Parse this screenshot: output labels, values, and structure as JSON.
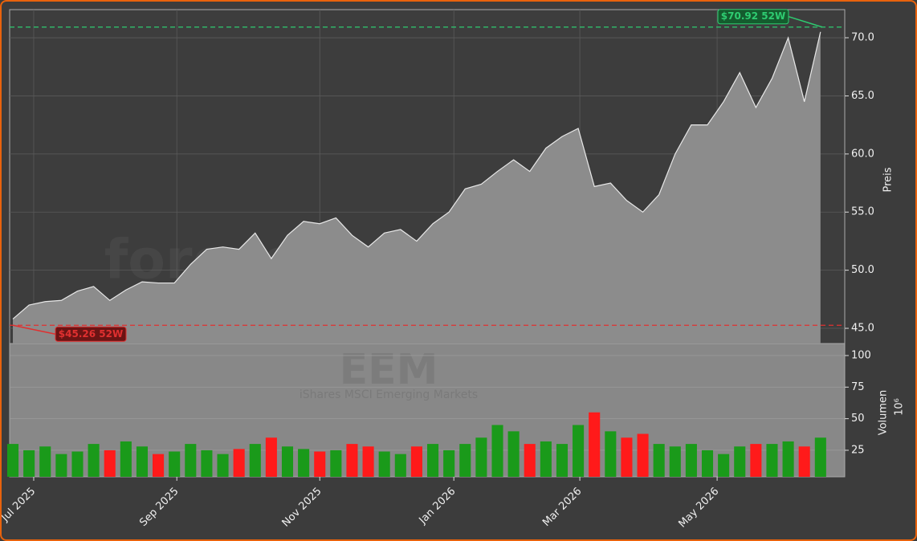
{
  "chart_data": [
    {
      "type": "area",
      "watermark": "forexsignale.trade",
      "ylabel": "Preis",
      "x": [
        0,
        1,
        2,
        3,
        4,
        5,
        6,
        7,
        8,
        9,
        10,
        11,
        12,
        13,
        14,
        15,
        16,
        17,
        18,
        19,
        20,
        21,
        22,
        23,
        24,
        25,
        26,
        27,
        28,
        29,
        30,
        31,
        32,
        33,
        34,
        35,
        36,
        37,
        38,
        39,
        40,
        41,
        42,
        43,
        44,
        45,
        46,
        47,
        48,
        49,
        50
      ],
      "series": [
        {
          "name": "EEM",
          "color": "#8c8c8c",
          "values": [
            45.8,
            47.0,
            47.3,
            47.4,
            48.2,
            48.6,
            47.4,
            48.3,
            49.0,
            48.9,
            48.9,
            50.5,
            51.8,
            52.0,
            51.8,
            53.2,
            51.0,
            53.0,
            54.2,
            54.0,
            54.5,
            53.0,
            52.0,
            53.2,
            53.5,
            52.5,
            54.0,
            55.0,
            57.0,
            57.4,
            58.5,
            59.5,
            58.5,
            60.5,
            61.5,
            62.2,
            57.2,
            57.5,
            56.0,
            55.0,
            56.5,
            60.0,
            62.5,
            62.5,
            64.5,
            67.0,
            64.0,
            66.5,
            70.0,
            64.5,
            70.5
          ]
        }
      ],
      "xlim": [
        -0.2,
        51.5
      ],
      "ylim": [
        43.69,
        72.42
      ],
      "yticks": [
        {
          "value": 45,
          "label": "45.0"
        },
        {
          "value": 50,
          "label": "50.0"
        },
        {
          "value": 55,
          "label": "55.0"
        },
        {
          "value": 60,
          "label": "60.0"
        },
        {
          "value": 65,
          "label": "65.0"
        },
        {
          "value": 70,
          "label": "70.0"
        }
      ],
      "grid": true,
      "hlines": [
        {
          "value": 70.92,
          "label": "$70.92 52W",
          "color": "#2ecc71"
        },
        {
          "value": 45.26,
          "label": "$45.26 52W",
          "color": "#e03030"
        }
      ]
    },
    {
      "type": "bar",
      "title": "EEM",
      "subtitle": "iShares MSCI Emerging Markets",
      "ylabel": "Volumen",
      "offset_label": "10⁶",
      "x": [
        0,
        1,
        2,
        3,
        4,
        5,
        6,
        7,
        8,
        9,
        10,
        11,
        12,
        13,
        14,
        15,
        16,
        17,
        18,
        19,
        20,
        21,
        22,
        23,
        24,
        25,
        26,
        27,
        28,
        29,
        30,
        31,
        32,
        33,
        34,
        35,
        36,
        37,
        38,
        39,
        40,
        41,
        42,
        43,
        44,
        45,
        46,
        47,
        48,
        49,
        50
      ],
      "up_color": "#1a9a1a",
      "down_color": "#ff1a1a",
      "values": [
        30,
        25,
        28,
        22,
        24,
        30,
        25,
        32,
        28,
        22,
        24,
        30,
        25,
        22,
        26,
        30,
        35,
        28,
        26,
        24,
        25,
        30,
        28,
        24,
        22,
        28,
        30,
        25,
        30,
        35,
        45,
        40,
        30,
        32,
        30,
        45,
        55,
        40,
        35,
        38,
        30,
        28,
        30,
        25,
        22,
        28,
        30,
        30,
        32,
        28,
        35
      ],
      "xlim": [
        -0.2,
        51.5
      ],
      "ylim": [
        4.0,
        109.5
      ],
      "yticks": [
        25,
        50,
        75,
        100
      ],
      "xticks": [
        {
          "value": 1.29,
          "label": "Jul 2025"
        },
        {
          "value": 10.15,
          "label": "Sep 2025"
        },
        {
          "value": 19.0,
          "label": "Nov 2025"
        },
        {
          "value": 27.3,
          "label": "Jan 2026"
        },
        {
          "value": 35.1,
          "label": "Mar 2026"
        },
        {
          "value": 43.6,
          "label": "May 2026"
        }
      ]
    }
  ]
}
